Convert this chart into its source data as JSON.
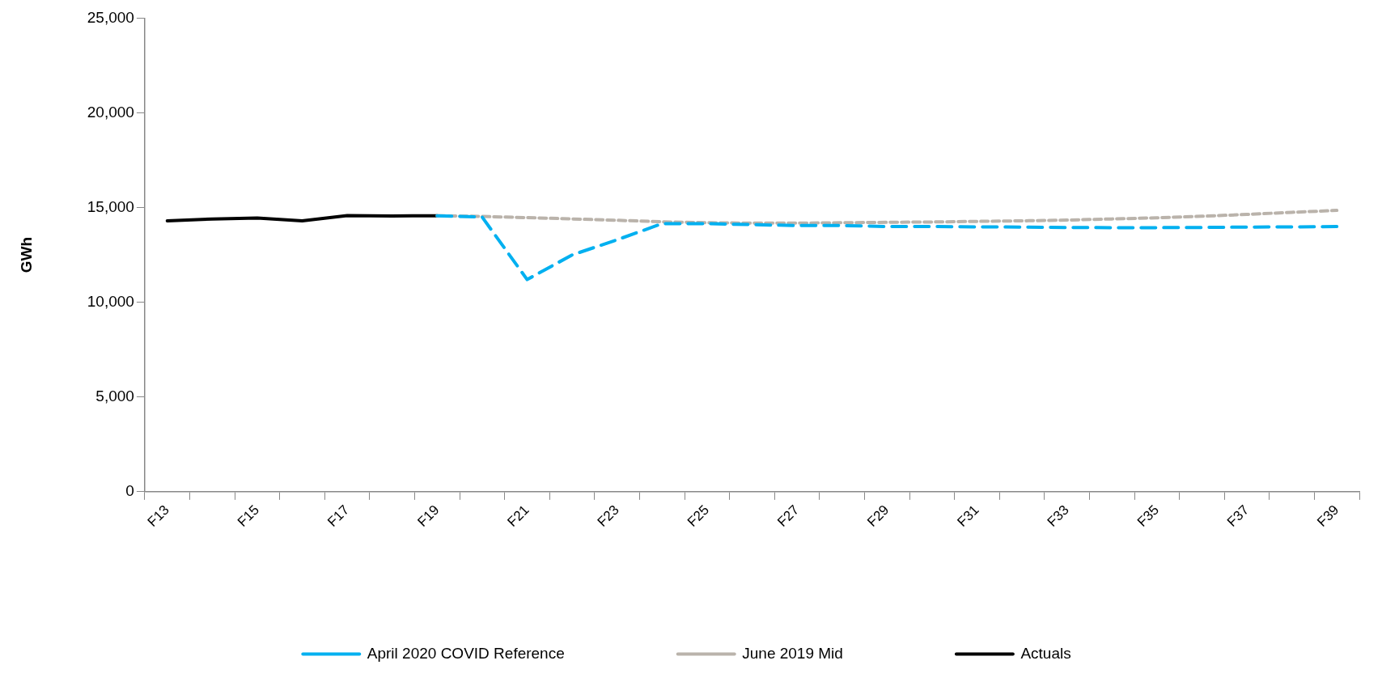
{
  "chart_data": {
    "type": "line",
    "ylabel": "GWh",
    "categories": [
      "F13",
      null,
      "F15",
      null,
      "F17",
      null,
      "F19",
      null,
      "F21",
      null,
      "F23",
      null,
      "F25",
      null,
      "F27",
      null,
      "F29",
      null,
      "F31",
      null,
      "F33",
      null,
      "F35",
      null,
      "F37",
      null,
      "F39"
    ],
    "ylim": [
      0,
      25000
    ],
    "yticks": [
      {
        "value": 0,
        "label": "0"
      },
      {
        "value": 5000,
        "label": "5,000"
      },
      {
        "value": 10000,
        "label": "10,000"
      },
      {
        "value": 15000,
        "label": "15,000"
      },
      {
        "value": 20000,
        "label": "20,000"
      },
      {
        "value": 25000,
        "label": "25,000"
      }
    ],
    "legend": "bottom",
    "marker": "none",
    "series": [
      {
        "name": "April 2020 COVID Reference",
        "color": "#00b0f0",
        "line_style": "dashed",
        "values": [
          null,
          null,
          null,
          null,
          null,
          null,
          14570,
          14500,
          11200,
          12500,
          13300,
          14150,
          14150,
          14100,
          14050,
          14050,
          14000,
          14000,
          13980,
          13970,
          13950,
          13940,
          13940,
          13950,
          13970,
          13980,
          14000
        ]
      },
      {
        "name": "June 2019 Mid",
        "color": "#bab3ab",
        "line_style": "dotted",
        "values": [
          null,
          null,
          null,
          null,
          null,
          null,
          14570,
          14530,
          14470,
          14400,
          14330,
          14250,
          14200,
          14180,
          14180,
          14200,
          14220,
          14240,
          14270,
          14300,
          14340,
          14400,
          14460,
          14540,
          14640,
          14750,
          14850
        ]
      },
      {
        "name": "Actuals",
        "color": "#000000",
        "line_style": "solid",
        "values": [
          14300,
          14400,
          14450,
          14300,
          14580,
          14560,
          14570,
          null,
          null,
          null,
          null,
          null,
          null,
          null,
          null,
          null,
          null,
          null,
          null,
          null,
          null,
          null,
          null,
          null,
          null,
          null,
          null
        ]
      }
    ]
  }
}
